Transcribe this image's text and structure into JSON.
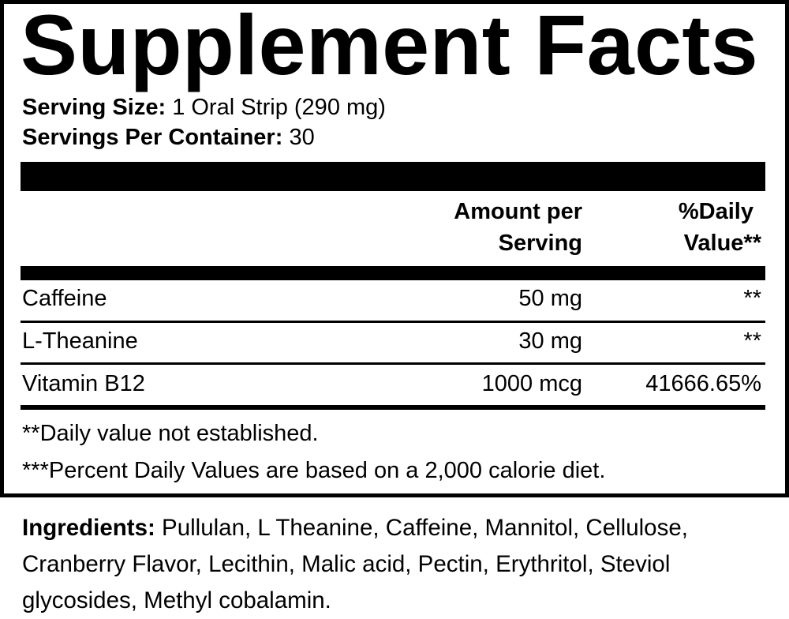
{
  "title": "Supplement Facts",
  "serving_size": {
    "label": "Serving Size:",
    "value": "1 Oral Strip (290 mg)"
  },
  "servings_per_container": {
    "label": "Servings Per Container:",
    "value": "30"
  },
  "columns": {
    "amount_line1": "Amount per",
    "amount_line2": "Serving",
    "dv_line1": "%Daily",
    "dv_line2": "Value**"
  },
  "rows": [
    {
      "name": "Caffeine",
      "amount": "50 mg",
      "dv": "**"
    },
    {
      "name": "L-Theanine",
      "amount": "30 mg",
      "dv": "**"
    },
    {
      "name": "Vitamin B12",
      "amount": "1000 mcg",
      "dv": "41666.65%"
    }
  ],
  "footnotes": [
    "**Daily value not established.",
    "***Percent Daily Values are based on a 2,000 calorie diet."
  ],
  "ingredients": {
    "label": "Ingredients:",
    "text": "Pullulan, L Theanine, Caffeine, Mannitol, Cellulose, Cranberry Flavor, Lecithin, Malic acid, Pectin, Erythritol, Steviol glycosides, Methyl cobalamin."
  }
}
